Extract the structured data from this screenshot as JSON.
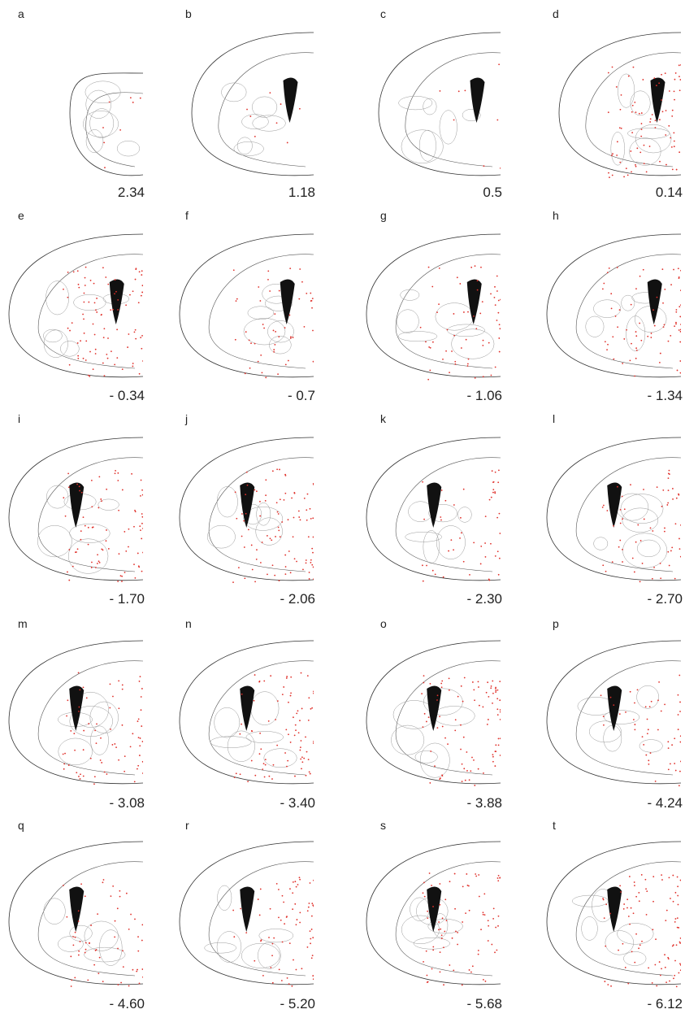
{
  "panels": [
    {
      "label": "a",
      "coordinate": "2.34"
    },
    {
      "label": "b",
      "coordinate": "1.18"
    },
    {
      "label": "c",
      "coordinate": "0.5"
    },
    {
      "label": "d",
      "coordinate": "0.14"
    },
    {
      "label": "e",
      "coordinate": "- 0.34"
    },
    {
      "label": "f",
      "coordinate": "- 0.7"
    },
    {
      "label": "g",
      "coordinate": "- 1.06"
    },
    {
      "label": "h",
      "coordinate": "- 1.34"
    },
    {
      "label": "i",
      "coordinate": "- 1.70"
    },
    {
      "label": "j",
      "coordinate": "- 2.06"
    },
    {
      "label": "k",
      "coordinate": "- 2.30"
    },
    {
      "label": "l",
      "coordinate": "- 2.70"
    },
    {
      "label": "m",
      "coordinate": "- 3.08"
    },
    {
      "label": "n",
      "coordinate": "- 3.40"
    },
    {
      "label": "o",
      "coordinate": "- 3.88"
    },
    {
      "label": "p",
      "coordinate": "- 4.24"
    },
    {
      "label": "q",
      "coordinate": "- 4.60"
    },
    {
      "label": "r",
      "coordinate": "- 5.20"
    },
    {
      "label": "s",
      "coordinate": "- 5.68"
    },
    {
      "label": "t",
      "coordinate": "- 6.12"
    }
  ]
}
